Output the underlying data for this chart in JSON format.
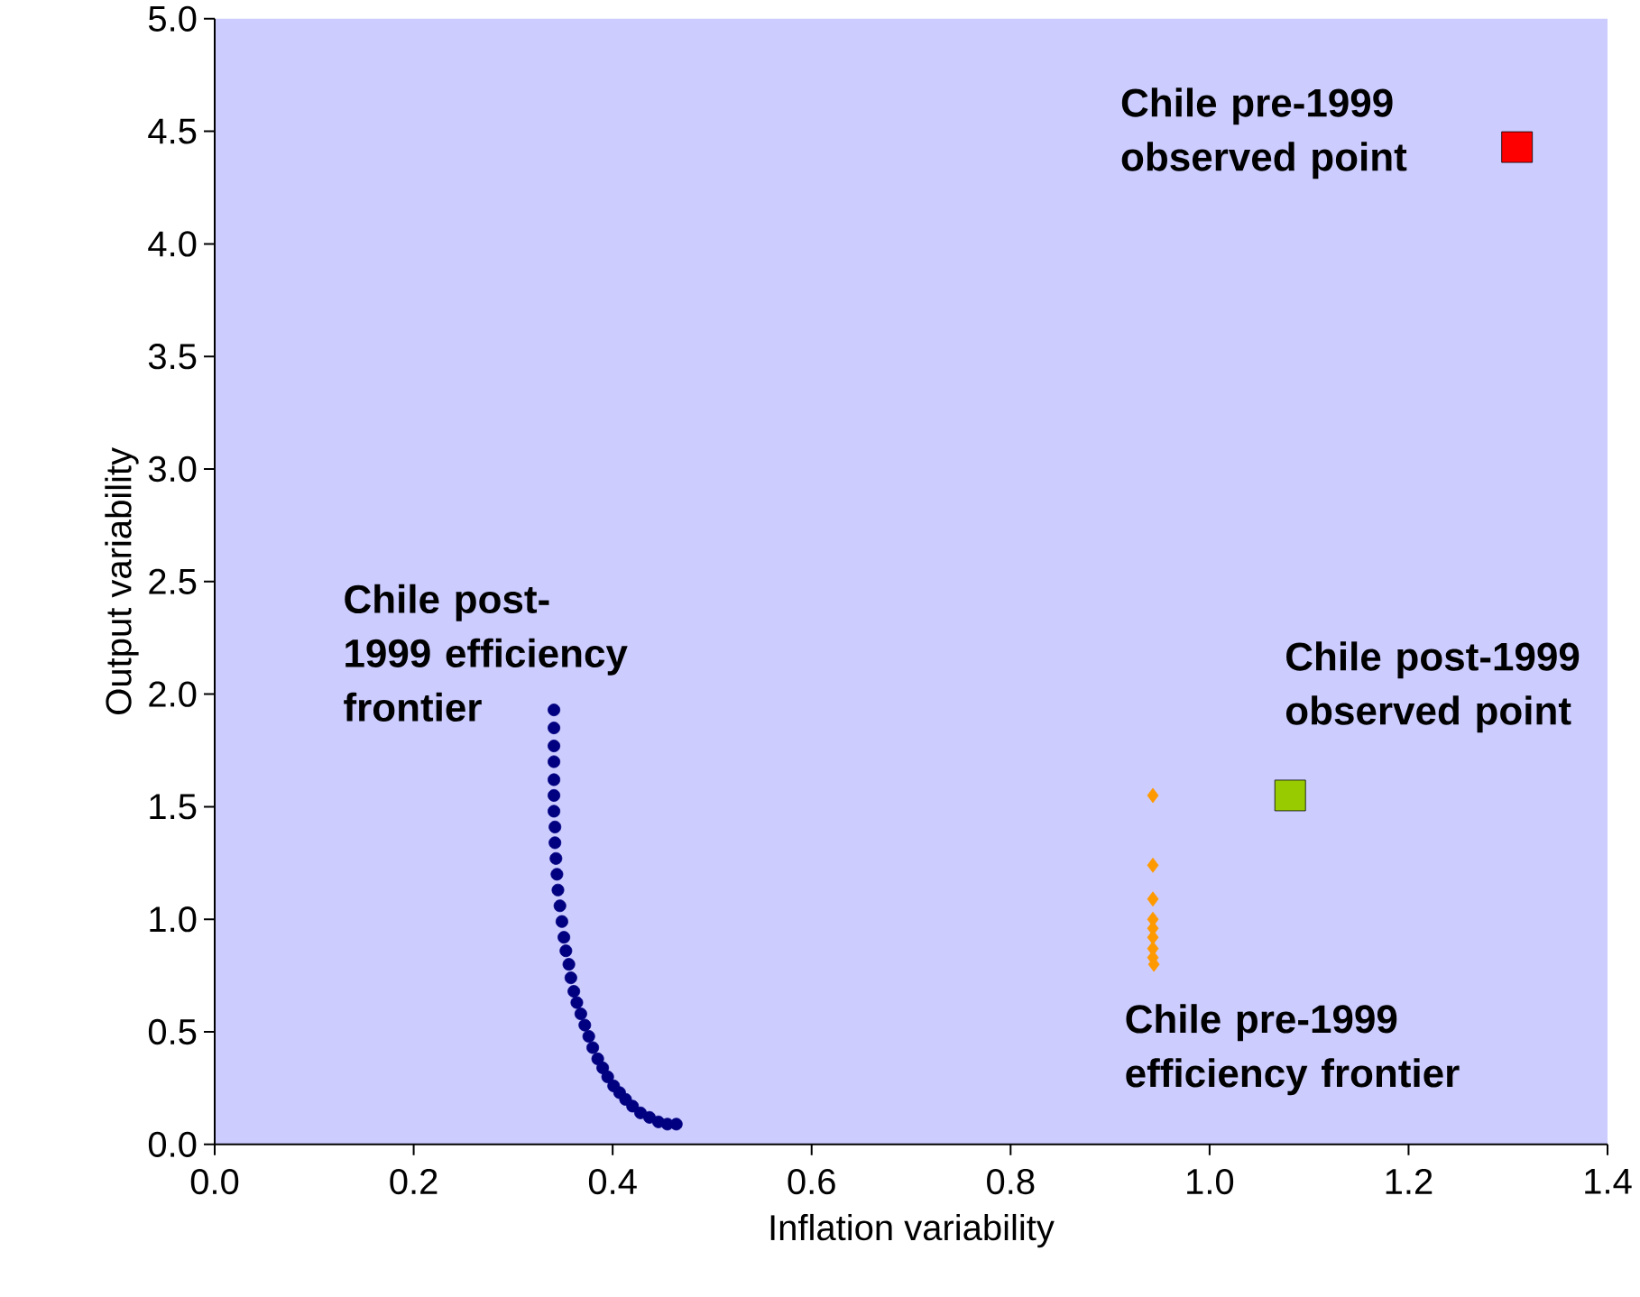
{
  "chart_data": {
    "type": "scatter",
    "xlabel": "Inflation variability",
    "ylabel": "Output variability",
    "xlim": [
      0,
      1.4
    ],
    "ylim": [
      0,
      5.0
    ],
    "xticks": [
      {
        "value": 0,
        "label": "0.0"
      },
      0.2,
      0.4,
      0.6,
      0.8,
      {
        "value": 1,
        "label": "1.0"
      },
      1.2,
      1.4
    ],
    "yticks": [
      {
        "value": 0,
        "label": "0.0"
      },
      0.5,
      {
        "value": 1,
        "label": "1.0"
      },
      1.5,
      {
        "value": 2,
        "label": "2.0"
      },
      2.5,
      {
        "value": 3,
        "label": "3.0"
      },
      3.5,
      {
        "value": 4,
        "label": "4.0"
      },
      4.5,
      {
        "value": 5,
        "label": "5.0"
      }
    ],
    "grid": false,
    "series": [
      {
        "color": "#000080",
        "marker": "circle",
        "x": [
          0.341,
          0.341,
          0.341,
          0.341,
          0.341,
          0.341,
          0.341,
          0.342,
          0.342,
          0.343,
          0.344,
          0.345,
          0.347,
          0.349,
          0.351,
          0.353,
          0.356,
          0.358,
          0.361,
          0.364,
          0.368,
          0.372,
          0.376,
          0.38,
          0.385,
          0.39,
          0.395,
          0.401,
          0.407,
          0.413,
          0.42,
          0.428,
          0.437,
          0.446,
          0.455,
          0.464
        ],
        "values": [
          1.93,
          1.85,
          1.77,
          1.7,
          1.62,
          1.55,
          1.48,
          1.41,
          1.34,
          1.27,
          1.2,
          1.13,
          1.06,
          0.99,
          0.92,
          0.86,
          0.8,
          0.74,
          0.68,
          0.63,
          0.58,
          0.53,
          0.48,
          0.43,
          0.38,
          0.34,
          0.3,
          0.26,
          0.23,
          0.2,
          0.17,
          0.14,
          0.12,
          0.1,
          0.09,
          0.09
        ]
      },
      {
        "color": "#ff9900",
        "marker": "diamond",
        "x": [
          0.943,
          0.943,
          0.943,
          0.943,
          0.943,
          0.943,
          0.943,
          0.943,
          0.944
        ],
        "values": [
          1.55,
          1.24,
          1.09,
          1.0,
          0.96,
          0.92,
          0.87,
          0.83,
          0.8
        ]
      },
      {
        "color": "#99cc00",
        "marker": "square",
        "x": [
          1.081
        ],
        "values": [
          1.55
        ]
      },
      {
        "color": "#ff0000",
        "marker": "square",
        "x": [
          1.309
        ],
        "values": [
          4.43
        ]
      }
    ],
    "annotations": [
      "Chile post-1999 efficiency frontier",
      "Chile pre-1999 efficiency frontier",
      "Chile post-1999 observed point",
      "Chile pre-1999 observed point"
    ]
  }
}
